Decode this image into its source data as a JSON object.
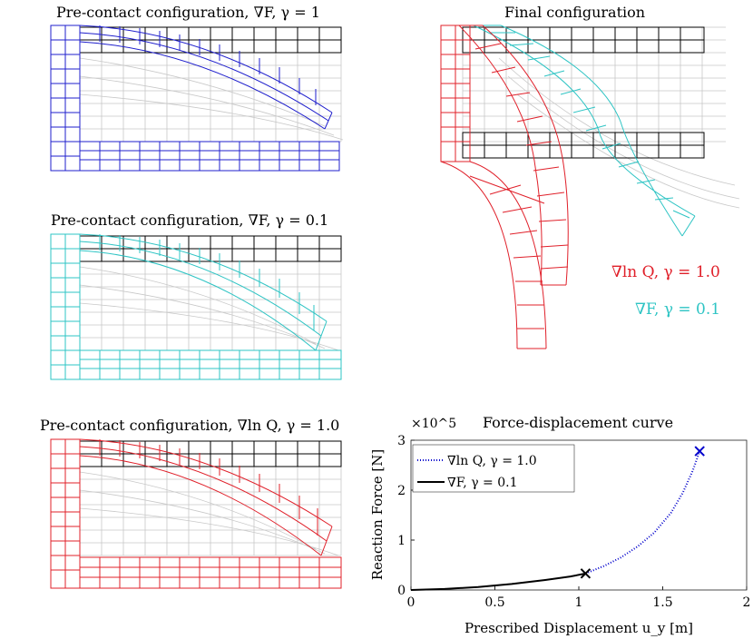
{
  "panels": {
    "p1": {
      "title": "Pre-contact configuration, ∇F,  γ = 1",
      "color": "#1f1fcc"
    },
    "p2": {
      "title": "Pre-contact configuration, ∇F,  γ = 0.1",
      "color": "#2ec4c4"
    },
    "p3": {
      "title": "Pre-contact configuration, ∇ln Q,  γ = 1.0",
      "color": "#e0202a"
    },
    "final": {
      "title": "Final configuration",
      "legend_q": "∇ln Q,  γ = 1.0",
      "legend_f": "∇F,  γ = 0.1",
      "color_q": "#e0202a",
      "color_f": "#2ec4c4"
    }
  },
  "chart_data": {
    "type": "line",
    "title": "Force-displacement curve",
    "xlabel": "Prescribed Displacement u_y [m]",
    "ylabel": "Reaction Force [N]",
    "multiplier_label": "×10^5",
    "xlim": [
      0,
      2
    ],
    "ylim": [
      0,
      3
    ],
    "xticks": [
      "0",
      "0.5",
      "1",
      "1.5",
      "2"
    ],
    "yticks": [
      "0",
      "1",
      "2",
      "3"
    ],
    "legend": "top-left",
    "series": [
      {
        "name": "∇ln Q,  γ = 1.0",
        "style": "dotted",
        "color": "#0000cc",
        "x": [
          1.04,
          1.15,
          1.25,
          1.35,
          1.45,
          1.55,
          1.62,
          1.68,
          1.72
        ],
        "y": [
          0.33,
          0.48,
          0.65,
          0.87,
          1.15,
          1.55,
          1.95,
          2.4,
          2.78
        ],
        "end_marker": "x"
      },
      {
        "name": "∇F,  γ = 0.1",
        "style": "solid",
        "color": "#000000",
        "x": [
          0,
          0.2,
          0.4,
          0.6,
          0.8,
          0.95,
          1.04
        ],
        "y": [
          0,
          0.02,
          0.06,
          0.12,
          0.2,
          0.27,
          0.33
        ],
        "end_marker": "x"
      }
    ]
  }
}
